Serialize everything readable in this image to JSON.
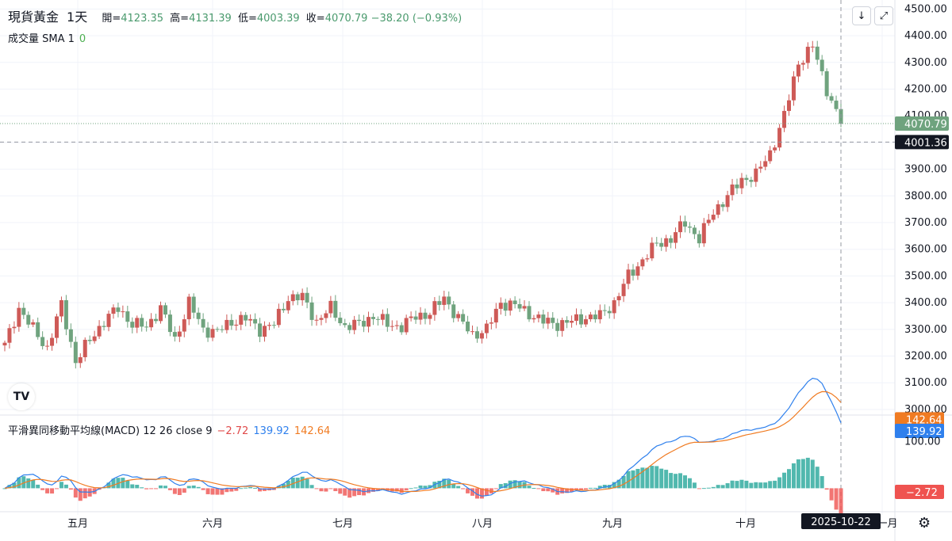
{
  "header": {
    "symbol": "現貨黃金",
    "interval": "1天",
    "open_label": "開=",
    "open": "4123.35",
    "high_label": "高=",
    "high": "4131.39",
    "low_label": "低=",
    "low": "4003.39",
    "close_label": "收=",
    "close": "4070.79",
    "change": "−38.20 (−0.93%)"
  },
  "volume": {
    "label": "成交量 SMA 1",
    "value": "0"
  },
  "macd": {
    "label": "平滑異同移動平均線(MACD) 12 26 close 9",
    "hist_value": "−2.72",
    "macd_value": "139.92",
    "signal_value": "142.64"
  },
  "toolbar": {
    "download_icon": "arrow-down-icon",
    "fullscreen_icon": "expand-icon"
  },
  "colors": {
    "up": "#ce5a57",
    "down": "#6fa37e",
    "macd": "#2f80ed",
    "signal": "#f07b22"
  },
  "chart_data": [
    {
      "type": "candlestick",
      "title": "現貨黃金 1天",
      "y_ticks": [
        "3000.00",
        "3100.00",
        "3200.00",
        "3300.00",
        "3400.00",
        "3500.00",
        "3600.00",
        "3700.00",
        "3800.00",
        "3900.00",
        "4000.00",
        "4100.00",
        "4200.00",
        "4300.00",
        "4400.00",
        "4500.00"
      ],
      "ylim": [
        2985,
        4510
      ],
      "x_labels": [
        "五月",
        "六月",
        "七月",
        "八月",
        "九月",
        "十月",
        "十一月"
      ],
      "last_price_label": "4070.79",
      "crosshair_price_label": "4001.36",
      "crosshair_date_label": "2025-10-22",
      "grid": true,
      "segments": [
        {
          "start": 3240,
          "anchors": [
            3240,
            3380,
            3300,
            3230,
            3390,
            3180,
            3260,
            3330,
            3380,
            3320,
            3310,
            3380,
            3260,
            3400,
            3300,
            3290,
            3330,
            3340,
            3300,
            3320,
            3420,
            3420,
            3330,
            3380,
            3310,
            3320,
            3350,
            3320,
            3310,
            3350,
            3360,
            3420,
            3340,
            3280,
            3300,
            3400,
            3390,
            3360,
            3330,
            3320,
            3330,
            3345,
            3350,
            3400,
            3500,
            3560,
            3620,
            3640,
            3700,
            3640,
            3740,
            3800,
            3860,
            3880,
            3960,
            4100,
            4300,
            4360,
            4200,
            4070
          ],
          "steps": 3
        }
      ]
    },
    {
      "type": "macd",
      "ylim": [
        -40,
        150
      ],
      "y_ticks": [
        "100.00"
      ],
      "macd_label": "139.92",
      "signal_label": "142.64",
      "hist_label": "−2.72"
    }
  ]
}
